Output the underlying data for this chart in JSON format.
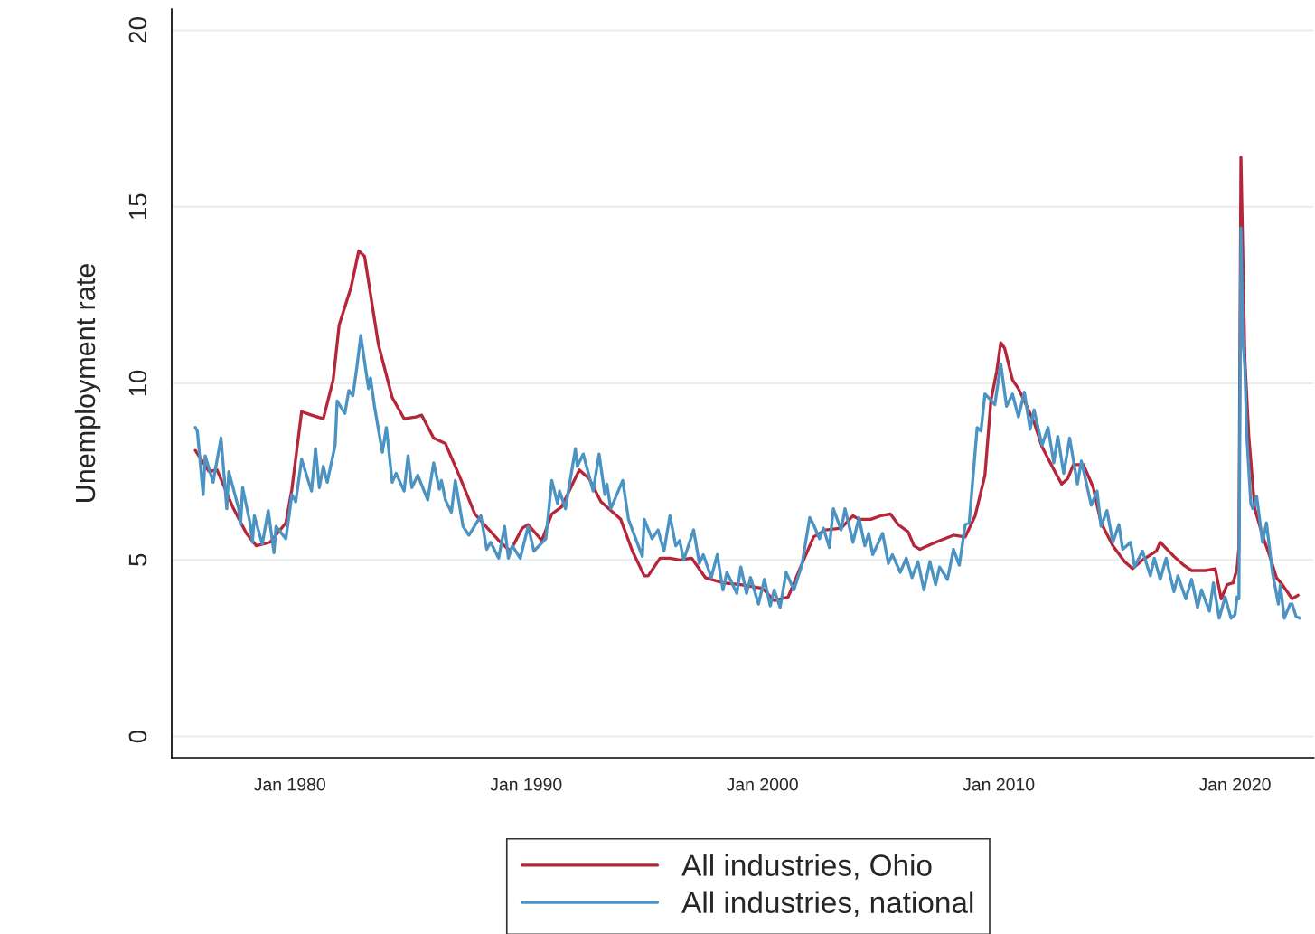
{
  "chart_data": {
    "type": "line",
    "ylabel": "Unemployment rate",
    "xlim": [
      "1975-01",
      "2023-05"
    ],
    "ylim": [
      -0.6,
      20.6
    ],
    "xticks": [
      {
        "value": "1980-01",
        "label": "Jan 1980"
      },
      {
        "value": "1990-01",
        "label": "Jan 1990"
      },
      {
        "value": "2000-01",
        "label": "Jan 2000"
      },
      {
        "value": "2010-01",
        "label": "Jan 2010"
      },
      {
        "value": "2020-01",
        "label": "Jan 2020"
      }
    ],
    "yticks": [
      0,
      5,
      10,
      15,
      20
    ],
    "grid": "y",
    "legend": "bottom",
    "marker": "none",
    "line_style": "solid",
    "series": [
      {
        "name": "All industries, Ohio",
        "color": "#b5263a",
        "x": [
          "1976-01",
          "1976-08",
          "1976-12",
          "1977-08",
          "1978-03",
          "1978-08",
          "1979-03",
          "1979-11",
          "1980-02",
          "1980-07",
          "1980-12",
          "1981-06",
          "1981-11",
          "1982-02",
          "1982-08",
          "1982-12",
          "1983-03",
          "1983-10",
          "1984-05",
          "1984-11",
          "1985-05",
          "1985-08",
          "1986-02",
          "1986-08",
          "1987-03",
          "1987-11",
          "1988-03",
          "1988-12",
          "1989-05",
          "1989-11",
          "1990-02",
          "1990-09",
          "1991-02",
          "1991-07",
          "1992-04",
          "1992-09",
          "1993-03",
          "1994-01",
          "1994-07",
          "1995-01",
          "1995-03",
          "1995-09",
          "1996-02",
          "1996-07",
          "1997-01",
          "1997-08",
          "1998-05",
          "1999-02",
          "2000-01",
          "2000-07",
          "2001-02",
          "2001-08",
          "2002-03",
          "2002-09",
          "2003-05",
          "2003-11",
          "2004-02",
          "2004-08",
          "2005-01",
          "2005-06",
          "2005-10",
          "2006-03",
          "2006-06",
          "2006-09",
          "2007-05",
          "2008-02",
          "2008-08",
          "2009-01",
          "2009-06",
          "2009-09",
          "2009-12",
          "2010-02",
          "2010-04",
          "2010-08",
          "2010-11",
          "2011-02",
          "2011-07",
          "2011-11",
          "2012-06",
          "2012-09",
          "2012-12",
          "2013-03",
          "2013-08",
          "2014-01",
          "2014-05",
          "2014-11",
          "2015-05",
          "2015-09",
          "2016-02",
          "2016-09",
          "2016-11",
          "2017-06",
          "2017-11",
          "2018-03",
          "2018-10",
          "2019-03",
          "2019-06",
          "2019-09",
          "2019-12",
          "2020-02",
          "2020-03",
          "2020-04",
          "2020-06",
          "2020-08",
          "2020-11",
          "2021-03",
          "2021-07",
          "2021-10",
          "2022-01",
          "2022-06",
          "2022-09"
        ],
        "values": [
          8.1,
          7.5,
          7.55,
          6.5,
          5.75,
          5.4,
          5.5,
          6.05,
          7.0,
          9.2,
          9.1,
          9.0,
          10.1,
          11.65,
          12.7,
          13.75,
          13.6,
          11.1,
          9.6,
          9.0,
          9.05,
          9.1,
          8.45,
          8.3,
          7.4,
          6.3,
          6.05,
          5.5,
          5.25,
          5.9,
          6.0,
          5.55,
          6.3,
          6.5,
          7.55,
          7.3,
          6.65,
          6.15,
          5.25,
          4.55,
          4.55,
          5.05,
          5.05,
          5.0,
          5.05,
          4.5,
          4.35,
          4.3,
          4.2,
          3.85,
          3.95,
          4.75,
          5.65,
          5.85,
          5.9,
          6.25,
          6.15,
          6.15,
          6.25,
          6.3,
          6.0,
          5.8,
          5.4,
          5.3,
          5.5,
          5.7,
          5.65,
          6.25,
          7.4,
          9.5,
          10.35,
          11.15,
          11.0,
          10.1,
          9.85,
          9.5,
          8.9,
          8.2,
          7.45,
          7.15,
          7.3,
          7.7,
          7.7,
          7.05,
          6.05,
          5.4,
          4.95,
          4.75,
          5.0,
          5.25,
          5.5,
          5.1,
          4.85,
          4.7,
          4.7,
          4.75,
          3.9,
          4.3,
          4.35,
          4.75,
          5.35,
          16.4,
          10.7,
          8.5,
          6.45,
          5.7,
          5.05,
          4.5,
          4.3,
          3.9,
          4.0
        ]
      },
      {
        "name": "All industries, national",
        "color": "#4b93c3",
        "x": [
          "1976-01",
          "1976-02",
          "1976-05",
          "1976-06",
          "1976-10",
          "1977-02",
          "1977-05",
          "1977-06",
          "1977-11",
          "1977-12",
          "1978-01",
          "1978-05",
          "1978-06",
          "1978-07",
          "1978-11",
          "1979-02",
          "1979-05",
          "1979-06",
          "1979-11",
          "1980-02",
          "1980-04",
          "1980-07",
          "1980-12",
          "1981-02",
          "1981-04",
          "1981-06",
          "1981-08",
          "1981-12",
          "1982-01",
          "1982-05",
          "1982-07",
          "1982-09",
          "1982-11",
          "1983-01",
          "1983-05",
          "1983-06",
          "1983-08",
          "1983-12",
          "1984-02",
          "1984-05",
          "1984-07",
          "1984-11",
          "1985-01",
          "1985-03",
          "1985-06",
          "1985-11",
          "1986-02",
          "1986-05",
          "1986-06",
          "1986-08",
          "1986-11",
          "1987-01",
          "1987-05",
          "1987-08",
          "1988-02",
          "1988-05",
          "1988-07",
          "1988-11",
          "1989-02",
          "1989-04",
          "1989-06",
          "1989-10",
          "1990-02",
          "1990-05",
          "1990-11",
          "1991-02",
          "1991-05",
          "1991-06",
          "1991-09",
          "1992-02",
          "1992-03",
          "1992-06",
          "1992-11",
          "1993-02",
          "1993-05",
          "1993-06",
          "1993-08",
          "1994-02",
          "1994-05",
          "1994-12",
          "1995-01",
          "1995-05",
          "1995-08",
          "1995-11",
          "1996-02",
          "1996-05",
          "1996-07",
          "1996-09",
          "1997-02",
          "1997-05",
          "1997-07",
          "1997-11",
          "1998-02",
          "1998-05",
          "1998-07",
          "1998-12",
          "1999-02",
          "1999-05",
          "1999-07",
          "1999-11",
          "2000-02",
          "2000-05",
          "2000-07",
          "2000-10",
          "2001-01",
          "2001-05",
          "2001-09",
          "2002-01",
          "2002-03",
          "2002-06",
          "2002-08",
          "2002-11",
          "2003-01",
          "2003-05",
          "2003-07",
          "2003-11",
          "2004-02",
          "2004-05",
          "2004-07",
          "2004-09",
          "2005-02",
          "2005-05",
          "2005-07",
          "2005-11",
          "2006-02",
          "2006-05",
          "2006-08",
          "2006-11",
          "2007-02",
          "2007-05",
          "2007-07",
          "2007-11",
          "2008-02",
          "2008-05",
          "2008-08",
          "2008-10",
          "2009-02",
          "2009-04",
          "2009-06",
          "2009-11",
          "2010-02",
          "2010-05",
          "2010-08",
          "2010-11",
          "2011-02",
          "2011-05",
          "2011-07",
          "2011-11",
          "2012-02",
          "2012-05",
          "2012-07",
          "2012-10",
          "2013-01",
          "2013-05",
          "2013-07",
          "2013-12",
          "2014-03",
          "2014-05",
          "2014-08",
          "2014-11",
          "2015-02",
          "2015-04",
          "2015-08",
          "2015-10",
          "2016-02",
          "2016-06",
          "2016-08",
          "2016-11",
          "2017-02",
          "2017-06",
          "2017-08",
          "2017-12",
          "2018-03",
          "2018-06",
          "2018-08",
          "2018-12",
          "2019-02",
          "2019-05",
          "2019-08",
          "2019-11",
          "2020-01",
          "2020-02",
          "2020-03",
          "2020-04",
          "2020-05",
          "2020-06",
          "2020-07",
          "2020-09",
          "2020-10",
          "2020-12",
          "2021-03",
          "2021-05",
          "2021-08",
          "2021-11",
          "2021-12",
          "2022-02",
          "2022-05",
          "2022-06",
          "2022-08",
          "2022-10"
        ],
        "values": [
          8.75,
          8.65,
          6.85,
          7.95,
          7.2,
          8.45,
          6.45,
          7.5,
          6.45,
          6.0,
          7.05,
          6.0,
          5.5,
          6.25,
          5.45,
          6.4,
          5.2,
          5.95,
          5.6,
          6.85,
          6.65,
          7.85,
          6.95,
          8.15,
          7.05,
          7.65,
          7.2,
          8.25,
          9.5,
          9.15,
          9.8,
          9.65,
          10.45,
          11.35,
          9.85,
          10.15,
          9.35,
          8.05,
          8.75,
          7.2,
          7.45,
          6.95,
          7.95,
          7.05,
          7.4,
          6.7,
          7.75,
          7.0,
          7.25,
          6.7,
          6.35,
          7.25,
          5.95,
          5.7,
          6.25,
          5.3,
          5.5,
          5.05,
          5.95,
          5.05,
          5.4,
          5.05,
          5.95,
          5.25,
          5.6,
          7.25,
          6.6,
          6.95,
          6.45,
          8.15,
          7.65,
          8.0,
          6.95,
          8.0,
          6.85,
          7.15,
          6.45,
          7.25,
          6.15,
          5.1,
          6.15,
          5.6,
          5.85,
          5.25,
          6.25,
          5.4,
          5.55,
          5.0,
          5.85,
          4.9,
          5.15,
          4.5,
          5.15,
          4.15,
          4.65,
          4.05,
          4.8,
          4.05,
          4.5,
          3.75,
          4.45,
          3.7,
          4.15,
          3.65,
          4.65,
          4.15,
          4.85,
          6.2,
          6.0,
          5.6,
          5.9,
          5.35,
          6.45,
          5.85,
          6.45,
          5.5,
          6.2,
          5.4,
          5.75,
          5.15,
          5.75,
          4.9,
          5.15,
          4.65,
          5.05,
          4.5,
          4.95,
          4.15,
          4.95,
          4.3,
          4.8,
          4.45,
          5.3,
          4.85,
          6.0,
          6.05,
          8.75,
          8.65,
          9.7,
          9.4,
          10.55,
          9.35,
          9.7,
          9.05,
          9.75,
          8.7,
          9.25,
          8.25,
          8.75,
          7.75,
          8.5,
          7.45,
          8.45,
          7.15,
          7.8,
          6.55,
          6.95,
          5.95,
          6.4,
          5.5,
          6.0,
          5.3,
          5.5,
          4.8,
          5.25,
          4.55,
          5.05,
          4.45,
          5.05,
          4.1,
          4.55,
          3.9,
          4.45,
          3.65,
          4.15,
          3.55,
          4.35,
          3.35,
          3.95,
          3.35,
          3.45,
          3.95,
          3.9,
          14.4,
          11.25,
          10.45,
          8.5,
          6.6,
          6.45,
          6.8,
          5.5,
          6.05,
          4.65,
          3.75,
          4.3,
          3.35,
          3.75,
          3.75,
          3.4,
          3.35
        ]
      }
    ]
  }
}
